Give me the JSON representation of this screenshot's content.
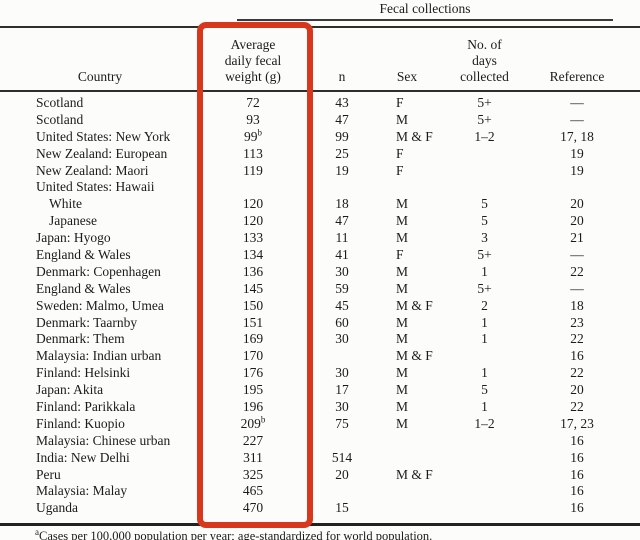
{
  "page": {
    "spanner_label": "Fecal collections",
    "footnote_marker": "a",
    "footnote_text": "Cases per 100,000 population per year; age-standardized for world population."
  },
  "highlight_box": {
    "color": "#d7381d"
  },
  "table": {
    "headers": {
      "country": "Country",
      "avg_weight": "Average\ndaily fecal\nweight (g)",
      "n": "n",
      "sex": "Sex",
      "days_collected": "No. of\ndays\ncollected",
      "reference": "Reference"
    },
    "rows": [
      {
        "country": "Scotland",
        "avg": "72",
        "n": "43",
        "sex": "F",
        "days": "5+",
        "ref": "—"
      },
      {
        "country": "Scotland",
        "avg": "93",
        "n": "47",
        "sex": "M",
        "days": "5+",
        "ref": "—"
      },
      {
        "country": "United States: New York",
        "avg": "99",
        "avg_sup": "b",
        "n": "99",
        "sex": "M & F",
        "days": "1–2",
        "ref": "17, 18"
      },
      {
        "country": "New Zealand: European",
        "avg": "113",
        "n": "25",
        "sex": "F",
        "days": "",
        "ref": "19"
      },
      {
        "country": "New Zealand: Maori",
        "avg": "119",
        "n": "19",
        "sex": "F",
        "days": "",
        "ref": "19"
      },
      {
        "country": "United States: Hawaii",
        "avg": "",
        "n": "",
        "sex": "",
        "days": "",
        "ref": ""
      },
      {
        "country": "White",
        "indent": true,
        "avg": "120",
        "n": "18",
        "sex": "M",
        "days": "5",
        "ref": "20"
      },
      {
        "country": "Japanese",
        "indent": true,
        "avg": "120",
        "n": "47",
        "sex": "M",
        "days": "5",
        "ref": "20"
      },
      {
        "country": "Japan: Hyogo",
        "avg": "133",
        "n": "11",
        "sex": "M",
        "days": "3",
        "ref": "21"
      },
      {
        "country": "England & Wales",
        "avg": "134",
        "n": "41",
        "sex": "F",
        "days": "5+",
        "ref": "—"
      },
      {
        "country": "Denmark: Copenhagen",
        "avg": "136",
        "n": "30",
        "sex": "M",
        "days": "1",
        "ref": "22"
      },
      {
        "country": "England & Wales",
        "avg": "145",
        "n": "59",
        "sex": "M",
        "days": "5+",
        "ref": "—"
      },
      {
        "country": "Sweden: Malmo, Umea",
        "avg": "150",
        "n": "45",
        "sex": "M & F",
        "days": "2",
        "ref": "18"
      },
      {
        "country": "Denmark: Taarnby",
        "avg": "151",
        "n": "60",
        "sex": "M",
        "days": "1",
        "ref": "23"
      },
      {
        "country": "Denmark: Them",
        "avg": "169",
        "n": "30",
        "sex": "M",
        "days": "1",
        "ref": "22"
      },
      {
        "country": "Malaysia: Indian urban",
        "avg": "170",
        "n": "",
        "sex": "M & F",
        "days": "",
        "ref": "16"
      },
      {
        "country": "Finland: Helsinki",
        "avg": "176",
        "n": "30",
        "sex": "M",
        "days": "1",
        "ref": "22"
      },
      {
        "country": "Japan: Akita",
        "avg": "195",
        "n": "17",
        "sex": "M",
        "days": "5",
        "ref": "20"
      },
      {
        "country": "Finland: Parikkala",
        "avg": "196",
        "n": "30",
        "sex": "M",
        "days": "1",
        "ref": "22"
      },
      {
        "country": "Finland: Kuopio",
        "avg": "209",
        "avg_sup": "b",
        "n": "75",
        "sex": "M",
        "days": "1–2",
        "ref": "17, 23"
      },
      {
        "country": "Malaysia: Chinese urban",
        "avg": "227",
        "n": "",
        "sex": "",
        "days": "",
        "ref": "16"
      },
      {
        "country": "India: New Delhi",
        "avg": "311",
        "n": "514",
        "sex": "",
        "days": "",
        "ref": "16"
      },
      {
        "country": "Peru",
        "avg": "325",
        "n": "20",
        "sex": "M & F",
        "days": "",
        "ref": "16"
      },
      {
        "country": "Malaysia: Malay",
        "avg": "465",
        "n": "",
        "sex": "",
        "days": "",
        "ref": "16"
      },
      {
        "country": "Uganda",
        "avg": "470",
        "n": "15",
        "sex": "",
        "days": "",
        "ref": "16"
      }
    ]
  }
}
